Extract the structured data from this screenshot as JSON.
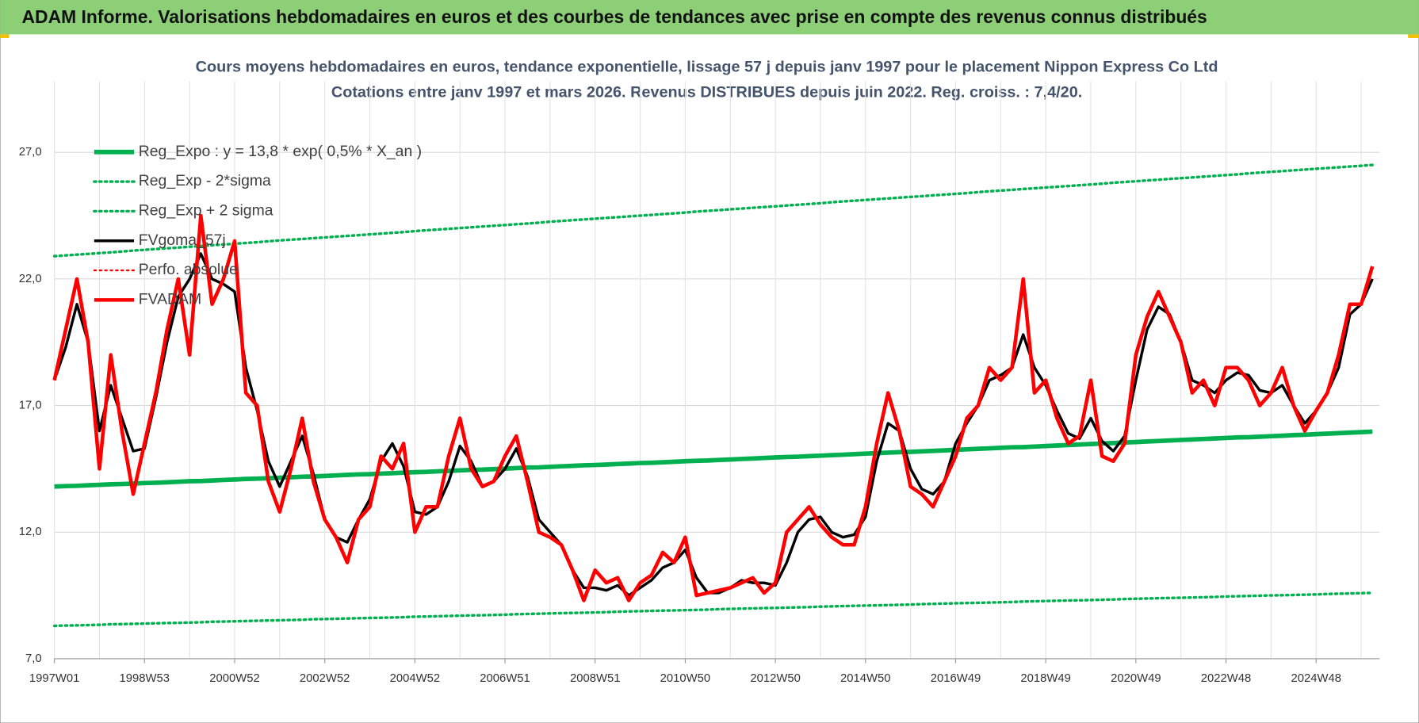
{
  "header": {
    "title": "ADAM Informe. Valorisations hebdomadaires en euros et des courbes de tendances avec prise en compte des revenus connus distribués"
  },
  "chart_data": {
    "type": "line",
    "title": "Cours moyens hebdomadaires en euros, tendance exponentielle, lissage 57 j depuis janv 1997 pour le placement Nippon Express Co Ltd",
    "subtitle": "Cotations entre janv 1997 et mars 2026. Revenus DISTRIBUES depuis juin 2022. Reg. croiss. : 7,4/20.",
    "grid": true,
    "legend": "top-left",
    "ylim": [
      7,
      29.8
    ],
    "yticks": [
      {
        "value": 7,
        "label": "7,0"
      },
      {
        "value": 12,
        "label": "12,0"
      },
      {
        "value": 17,
        "label": "17,0"
      },
      {
        "value": 22,
        "label": "22,0"
      },
      {
        "value": 27,
        "label": "27,0"
      }
    ],
    "categories": [
      "1997W01",
      null,
      null,
      null,
      null,
      null,
      null,
      null,
      "1998W53",
      null,
      null,
      null,
      null,
      null,
      null,
      null,
      "2000W52",
      null,
      null,
      null,
      null,
      null,
      null,
      null,
      "2002W52",
      null,
      null,
      null,
      null,
      null,
      null,
      null,
      "2004W52",
      null,
      null,
      null,
      null,
      null,
      null,
      null,
      "2006W51",
      null,
      null,
      null,
      null,
      null,
      null,
      null,
      "2008W51",
      null,
      null,
      null,
      null,
      null,
      null,
      null,
      "2010W50",
      null,
      null,
      null,
      null,
      null,
      null,
      null,
      "2012W50",
      null,
      null,
      null,
      null,
      null,
      null,
      null,
      "2014W50",
      null,
      null,
      null,
      null,
      null,
      null,
      null,
      "2016W49",
      null,
      null,
      null,
      null,
      null,
      null,
      null,
      "2018W49",
      null,
      null,
      null,
      null,
      null,
      null,
      null,
      "2020W49",
      null,
      null,
      null,
      null,
      null,
      null,
      null,
      "2022W48",
      null,
      null,
      null,
      null,
      null,
      null,
      null,
      "2024W48",
      null,
      null,
      null,
      null,
      null
    ],
    "series": [
      {
        "name": "Reg_Expo : y = 13,8 * exp( 0,5% *  X_an )",
        "color": "#00b050",
        "style": "solid",
        "width": 5,
        "values": [
          13.8,
          13.82,
          13.83,
          13.85,
          13.87,
          13.89,
          13.9,
          13.92,
          13.94,
          13.95,
          13.97,
          13.99,
          14.01,
          14.02,
          14.04,
          14.06,
          14.08,
          14.1,
          14.11,
          14.13,
          14.15,
          14.17,
          14.19,
          14.2,
          14.22,
          14.24,
          14.26,
          14.28,
          14.29,
          14.31,
          14.33,
          14.35,
          14.37,
          14.38,
          14.4,
          14.42,
          14.44,
          14.46,
          14.47,
          14.49,
          14.51,
          14.53,
          14.55,
          14.56,
          14.58,
          14.6,
          14.62,
          14.64,
          14.65,
          14.67,
          14.69,
          14.71,
          14.73,
          14.74,
          14.76,
          14.78,
          14.8,
          14.82,
          14.83,
          14.85,
          14.87,
          14.89,
          14.91,
          14.93,
          14.95,
          14.97,
          14.98,
          15.0,
          15.02,
          15.04,
          15.06,
          15.08,
          15.1,
          15.12,
          15.14,
          15.16,
          15.17,
          15.19,
          15.21,
          15.23,
          15.25,
          15.27,
          15.29,
          15.31,
          15.33,
          15.35,
          15.36,
          15.38,
          15.4,
          15.42,
          15.44,
          15.46,
          15.48,
          15.5,
          15.52,
          15.54,
          15.56,
          15.58,
          15.6,
          15.62,
          15.64,
          15.66,
          15.68,
          15.7,
          15.72,
          15.74,
          15.75,
          15.77,
          15.79,
          15.81,
          15.83,
          15.85,
          15.87,
          15.89,
          15.91,
          15.93,
          15.95,
          15.97
        ]
      },
      {
        "name": "Reg_Exp - 2*sigma",
        "color": "#00b050",
        "style": "dotted",
        "width": 3,
        "values": [
          8.3,
          8.31,
          8.32,
          8.33,
          8.34,
          8.36,
          8.37,
          8.38,
          8.39,
          8.4,
          8.41,
          8.42,
          8.43,
          8.44,
          8.46,
          8.47,
          8.48,
          8.49,
          8.5,
          8.51,
          8.52,
          8.53,
          8.54,
          8.56,
          8.57,
          8.58,
          8.59,
          8.6,
          8.61,
          8.62,
          8.63,
          8.64,
          8.66,
          8.67,
          8.68,
          8.69,
          8.7,
          8.71,
          8.72,
          8.73,
          8.74,
          8.76,
          8.77,
          8.78,
          8.79,
          8.8,
          8.81,
          8.82,
          8.83,
          8.84,
          8.86,
          8.87,
          8.88,
          8.89,
          8.9,
          8.91,
          8.92,
          8.93,
          8.94,
          8.96,
          8.97,
          8.98,
          8.99,
          9.0,
          9.01,
          9.02,
          9.03,
          9.04,
          9.06,
          9.07,
          9.08,
          9.09,
          9.1,
          9.11,
          9.12,
          9.13,
          9.14,
          9.16,
          9.17,
          9.18,
          9.19,
          9.2,
          9.21,
          9.22,
          9.23,
          9.24,
          9.26,
          9.27,
          9.28,
          9.29,
          9.3,
          9.31,
          9.32,
          9.33,
          9.34,
          9.36,
          9.37,
          9.38,
          9.39,
          9.4,
          9.41,
          9.42,
          9.43,
          9.44,
          9.46,
          9.47,
          9.48,
          9.49,
          9.5,
          9.51,
          9.52,
          9.53,
          9.54,
          9.56,
          9.57,
          9.58,
          9.59,
          9.6
        ]
      },
      {
        "name": "Reg_Exp + 2 sigma",
        "color": "#00b050",
        "style": "dotted",
        "width": 3,
        "values": [
          22.9,
          22.93,
          22.96,
          22.99,
          23.02,
          23.05,
          23.08,
          23.12,
          23.15,
          23.18,
          23.21,
          23.24,
          23.27,
          23.3,
          23.33,
          23.36,
          23.39,
          23.42,
          23.45,
          23.49,
          23.52,
          23.55,
          23.58,
          23.61,
          23.64,
          23.67,
          23.7,
          23.73,
          23.76,
          23.79,
          23.82,
          23.85,
          23.89,
          23.92,
          23.95,
          23.98,
          24.01,
          24.04,
          24.07,
          24.1,
          24.13,
          24.16,
          24.19,
          24.22,
          24.26,
          24.29,
          24.32,
          24.35,
          24.38,
          24.41,
          24.44,
          24.47,
          24.5,
          24.53,
          24.56,
          24.59,
          24.62,
          24.66,
          24.69,
          24.72,
          24.75,
          24.78,
          24.81,
          24.84,
          24.87,
          24.9,
          24.93,
          24.96,
          24.99,
          25.03,
          25.06,
          25.09,
          25.12,
          25.15,
          25.18,
          25.21,
          25.24,
          25.27,
          25.3,
          25.33,
          25.36,
          25.39,
          25.43,
          25.46,
          25.49,
          25.52,
          25.55,
          25.58,
          25.61,
          25.64,
          25.67,
          25.7,
          25.73,
          25.76,
          25.8,
          25.83,
          25.86,
          25.89,
          25.92,
          25.95,
          25.98,
          26.01,
          26.04,
          26.07,
          26.1,
          26.13,
          26.17,
          26.2,
          26.23,
          26.26,
          26.29,
          26.32,
          26.35,
          26.38,
          26.41,
          26.44,
          26.47,
          26.5
        ]
      },
      {
        "name": "FVgoma_57j",
        "color": "#000000",
        "style": "solid",
        "width": 3,
        "values": [
          18.0,
          19.3,
          21.0,
          19.5,
          16.0,
          17.8,
          16.5,
          15.2,
          15.3,
          17.3,
          19.5,
          21.3,
          22.0,
          23.0,
          22.0,
          21.8,
          21.5,
          18.5,
          16.8,
          14.8,
          13.8,
          14.8,
          15.8,
          14.3,
          12.5,
          11.8,
          11.6,
          12.5,
          13.3,
          14.8,
          15.5,
          14.6,
          12.8,
          12.7,
          13.0,
          14.0,
          15.4,
          14.8,
          13.8,
          14.0,
          14.5,
          15.3,
          14.2,
          12.5,
          12.0,
          11.5,
          10.5,
          9.8,
          9.8,
          9.7,
          9.9,
          9.5,
          9.8,
          10.1,
          10.6,
          10.8,
          11.3,
          10.2,
          9.6,
          9.6,
          9.8,
          10.1,
          10.0,
          10.0,
          9.9,
          10.8,
          12.0,
          12.5,
          12.6,
          12.0,
          11.8,
          11.9,
          12.6,
          14.8,
          16.3,
          16.0,
          14.5,
          13.7,
          13.5,
          14.0,
          15.5,
          16.3,
          17.0,
          18.0,
          18.2,
          18.5,
          19.8,
          18.5,
          17.8,
          16.8,
          15.9,
          15.7,
          16.5,
          15.6,
          15.2,
          15.8,
          18.0,
          20.0,
          20.9,
          20.6,
          19.5,
          18.0,
          17.8,
          17.5,
          18.0,
          18.3,
          18.2,
          17.6,
          17.5,
          17.8,
          17.0,
          16.3,
          16.8,
          17.5,
          18.5,
          20.6,
          21.0,
          22.0
        ]
      },
      {
        "name": "Perfo. absolue",
        "color": "#ff0000",
        "style": "dotted",
        "width": 2,
        "values": [
          null,
          null,
          null,
          null,
          null,
          null,
          null,
          null,
          null,
          null,
          null,
          null,
          null,
          null,
          null,
          null,
          null,
          null,
          null,
          null,
          null,
          null,
          null,
          null,
          null,
          null,
          null,
          null,
          null,
          null,
          null,
          null,
          null,
          null,
          null,
          null,
          null,
          null,
          null,
          null,
          null,
          null,
          null,
          null,
          null,
          null,
          null,
          null,
          null,
          null,
          null,
          null,
          null,
          null,
          null,
          null,
          null,
          null,
          null,
          null,
          null,
          null,
          null,
          null,
          null,
          null,
          null,
          null,
          null,
          null,
          null,
          null,
          null,
          null,
          null,
          null,
          null,
          null,
          null,
          null,
          null,
          null,
          null,
          null,
          null,
          null,
          null,
          null,
          null,
          null,
          null,
          null,
          null,
          null,
          null,
          null,
          null,
          null,
          null,
          null,
          null,
          null,
          null,
          null,
          null,
          null,
          null,
          null,
          null,
          null,
          null,
          null,
          null,
          null,
          null,
          null,
          null,
          null
        ]
      },
      {
        "name": "FVADAM",
        "color": "#ff0000",
        "style": "solid",
        "width": 4,
        "values": [
          18.0,
          20.0,
          22.0,
          19.5,
          14.5,
          19.0,
          16.0,
          13.5,
          15.5,
          17.5,
          20.0,
          22.0,
          19.0,
          24.5,
          21.0,
          22.0,
          23.5,
          17.5,
          17.0,
          14.0,
          12.8,
          14.5,
          16.5,
          14.0,
          12.5,
          11.8,
          10.8,
          12.5,
          13.0,
          15.0,
          14.5,
          15.5,
          12.0,
          13.0,
          13.0,
          15.0,
          16.5,
          14.5,
          13.8,
          14.0,
          15.0,
          15.8,
          14.0,
          12.0,
          11.8,
          11.5,
          10.5,
          9.3,
          10.5,
          10.0,
          10.2,
          9.3,
          10.0,
          10.3,
          11.2,
          10.8,
          11.8,
          9.5,
          9.6,
          9.7,
          9.8,
          10.0,
          10.2,
          9.6,
          10.0,
          12.0,
          12.5,
          13.0,
          12.3,
          11.8,
          11.5,
          11.5,
          13.0,
          15.5,
          17.5,
          16.0,
          13.8,
          13.5,
          13.0,
          14.0,
          15.0,
          16.5,
          17.0,
          18.5,
          18.0,
          18.5,
          22.0,
          17.5,
          18.0,
          16.5,
          15.5,
          15.8,
          18.0,
          15.0,
          14.8,
          15.5,
          19.0,
          20.5,
          21.5,
          20.5,
          19.5,
          17.5,
          18.0,
          17.0,
          18.5,
          18.5,
          18.0,
          17.0,
          17.5,
          18.5,
          17.0,
          16.0,
          16.8,
          17.5,
          19.0,
          21.0,
          21.0,
          22.5
        ]
      }
    ]
  }
}
